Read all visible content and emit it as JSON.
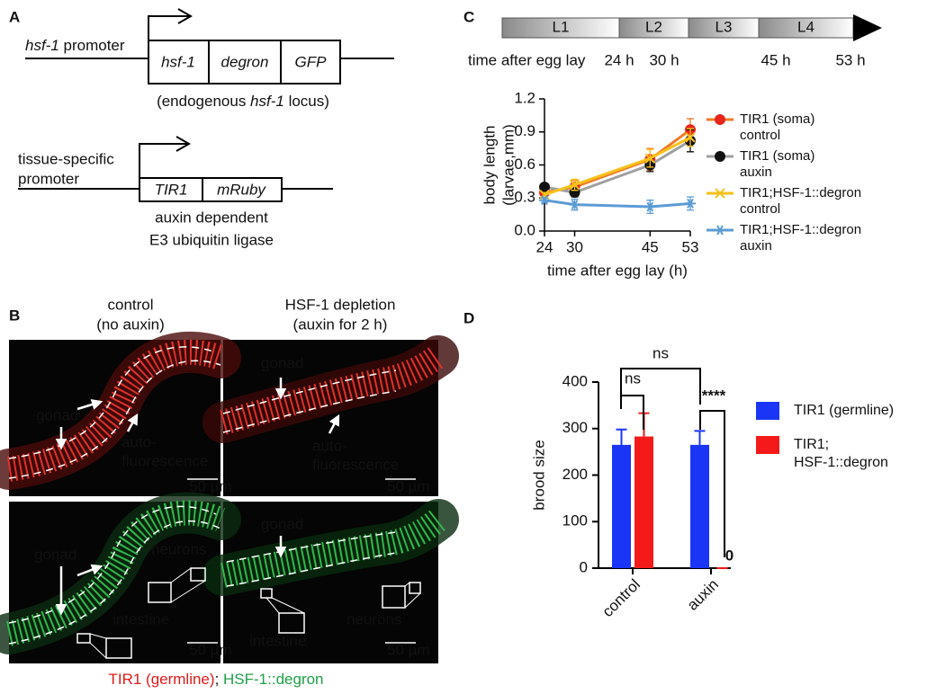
{
  "panels": {
    "a": "A",
    "b": "B",
    "c": "C",
    "d": "D"
  },
  "diagram": {
    "construct1": {
      "promoter": [
        "hsf-1",
        " promoter"
      ],
      "boxes": [
        "hsf-1",
        "degron",
        "GFP"
      ],
      "caption": [
        "(endogenous ",
        "hsf-1",
        " locus)"
      ]
    },
    "construct2": {
      "promoter": [
        "tissue-specific",
        "promoter"
      ],
      "boxes": [
        "TIR1",
        "mRuby"
      ],
      "caption": [
        "auxin dependent",
        "E3 ubiquitin ligase"
      ]
    }
  },
  "microscopy": {
    "columns": [
      [
        "control",
        "(no auxin)"
      ],
      [
        "HSF-1 depletion",
        "(auxin for 2 h)"
      ]
    ],
    "labels": {
      "gonad": "gonad",
      "autofluorescence": [
        "auto-",
        "fluorescence"
      ],
      "neurons": "neurons",
      "intestine": "intestine",
      "scale": "50 µm"
    },
    "caption": [
      "TIR1 (germline)",
      "; ",
      "HSF-1::degron"
    ]
  },
  "timeline": {
    "stages": [
      "L1",
      "L2",
      "L3",
      "L4"
    ],
    "axis_label": "time after egg lay",
    "times": [
      "24 h",
      "30 h",
      "45 h",
      "53 h"
    ]
  },
  "chart_data": [
    {
      "type": "line",
      "x": [
        24,
        30,
        45,
        53
      ],
      "xlim": [
        24,
        53
      ],
      "xticks": [
        24,
        30,
        45,
        53
      ],
      "ylim": [
        0,
        1.2
      ],
      "yticks": [
        {
          "value": 0,
          "label": "0.0"
        },
        0.3,
        0.6,
        0.9,
        1.2
      ],
      "xlabel": "time after egg lay (h)",
      "ylabel": [
        "body length",
        "(larvae,mm)"
      ],
      "series": [
        {
          "name": "TIR1 (soma)\ncontrol",
          "color": "#f07a2a",
          "marker_color": "#e8251d",
          "marker": "circle",
          "values": [
            0.35,
            0.4,
            0.65,
            0.92
          ],
          "errors": [
            0.03,
            0.06,
            0.1,
            0.1
          ]
        },
        {
          "name": "TIR1 (soma)\nauxin",
          "color": "#a0a0a0",
          "marker_color": "#111111",
          "marker": "circle",
          "values": [
            0.4,
            0.35,
            0.6,
            0.82
          ],
          "errors": [
            0.02,
            0.04,
            0.06,
            0.1
          ]
        },
        {
          "name": "TIR1;HSF-1::degron\ncontrol",
          "color": "#f7c21b",
          "marker_color": "#f7c21b",
          "marker": "x",
          "values": [
            0.33,
            0.42,
            0.66,
            0.85
          ],
          "errors": [
            0.02,
            0.05,
            0.08,
            0.08
          ]
        },
        {
          "name": "TIR1;HSF-1::degron\nauxin",
          "color": "#5b9bd5",
          "marker_color": "#5b9bd5",
          "marker": "asterisk",
          "values": [
            0.28,
            0.24,
            0.22,
            0.25
          ],
          "errors": [
            0.02,
            0.05,
            0.06,
            0.06
          ]
        }
      ]
    },
    {
      "type": "bar",
      "categories": [
        "control",
        "auxin"
      ],
      "ylim": [
        0,
        400
      ],
      "yticks": [
        0,
        100,
        200,
        300,
        400
      ],
      "ylabel": "brood size",
      "series": [
        {
          "name": "TIR1 (germline)",
          "color": "#1a35f5",
          "values": [
            265,
            265
          ],
          "errors": [
            33,
            30
          ]
        },
        {
          "name": "TIR1;\nHSF-1::degron",
          "color": "#f51a1a",
          "values": [
            283,
            0
          ],
          "errors": [
            50,
            0
          ]
        }
      ],
      "annotations": [
        "ns",
        "ns",
        "****"
      ]
    }
  ]
}
